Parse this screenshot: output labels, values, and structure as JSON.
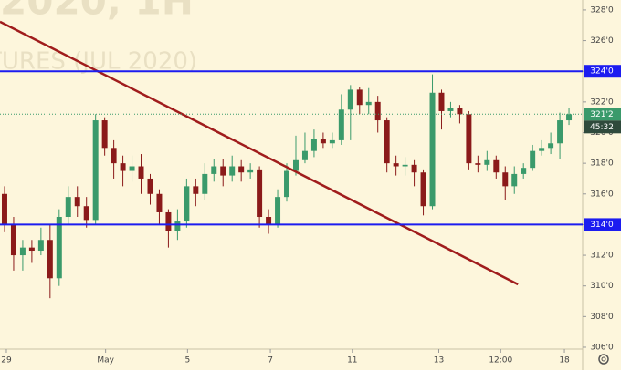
{
  "chart_data": {
    "type": "candlestick",
    "watermark": [
      "2020, 1H",
      "TURES (JUL 2020)"
    ],
    "xlim": [
      0,
      64
    ],
    "xticks": [
      {
        "value": 0.7,
        "label": "29"
      },
      {
        "value": 11.6,
        "label": "May"
      },
      {
        "value": 20.6,
        "label": "5"
      },
      {
        "value": 29.7,
        "label": "7"
      },
      {
        "value": 38.7,
        "label": "11"
      },
      {
        "value": 48.2,
        "label": "13"
      },
      {
        "value": 55,
        "label": "12:00"
      },
      {
        "value": 62,
        "label": "18"
      }
    ],
    "ylim": [
      305.88,
      328.65
    ],
    "yticks": [
      {
        "value": 306,
        "label": "306'0"
      },
      {
        "value": 308,
        "label": "308'0"
      },
      {
        "value": 310,
        "label": "310'0"
      },
      {
        "value": 312,
        "label": "312'0"
      },
      {
        "value": 314,
        "label": "314'0"
      },
      {
        "value": 316,
        "label": "316'0"
      },
      {
        "value": 318,
        "label": "318'0"
      },
      {
        "value": 320,
        "label": "320'0"
      },
      {
        "value": 322,
        "label": "322'0"
      },
      {
        "value": 324,
        "label": "324'0"
      },
      {
        "value": 326,
        "label": "326'0"
      },
      {
        "value": 328,
        "label": "328'0"
      }
    ],
    "up_color": "#3a9a6b",
    "down_color": "#8b1a1a",
    "x": [
      0,
      1,
      2,
      3,
      4,
      5,
      6,
      7,
      8,
      9,
      10,
      11,
      12,
      13,
      14,
      15,
      16,
      17,
      18,
      19,
      20,
      21,
      22,
      23,
      24,
      25,
      26,
      27,
      28,
      29,
      30,
      31,
      32,
      33,
      34,
      35,
      36,
      37,
      38,
      39,
      40,
      41,
      42,
      43,
      44,
      45,
      46,
      47,
      48,
      49,
      50,
      51,
      52,
      53,
      54,
      55,
      56,
      57,
      58,
      59,
      60,
      61,
      62
    ],
    "open": [
      316,
      314,
      312,
      312.5,
      312.3,
      313,
      310.5,
      314.5,
      315.8,
      315.2,
      314.3,
      320.8,
      319,
      318,
      317.5,
      317.8,
      317,
      316,
      314.8,
      313.6,
      314.2,
      316.5,
      316,
      317.3,
      317.8,
      317.2,
      317.8,
      317.4,
      317.6,
      314.5,
      314,
      315.8,
      317.5,
      318.2,
      318.8,
      319.6,
      319.3,
      319.5,
      321.5,
      322.8,
      321.8,
      322,
      320.8,
      318,
      317.8,
      317.9,
      317.4,
      315.2,
      322.6,
      321.4,
      321.6,
      321.2,
      318,
      317.9,
      318.2,
      317.4,
      316.5,
      317.3,
      317.7,
      318.8,
      319,
      319.3,
      320.8
    ],
    "high": [
      316.5,
      314.5,
      313,
      313,
      313.8,
      314,
      315,
      316.5,
      316.5,
      315.8,
      321.2,
      321,
      319.5,
      318.5,
      318.5,
      318.6,
      317.3,
      316.3,
      315,
      315,
      317,
      317,
      318,
      318.3,
      318.3,
      318.5,
      318.2,
      318,
      317.8,
      315,
      316.3,
      318,
      319.8,
      320,
      320.2,
      320,
      320,
      322.5,
      323.1,
      323,
      322.9,
      322.4,
      321,
      318.5,
      318.4,
      318.2,
      317.6,
      323.8,
      322.8,
      322,
      321.8,
      321.4,
      318.5,
      318.8,
      318.5,
      317.8,
      317.8,
      318,
      319.2,
      319.5,
      320,
      321.3,
      321.6
    ],
    "low": [
      313.5,
      311,
      311,
      311.5,
      312,
      309.2,
      310,
      314,
      314.5,
      313.8,
      314,
      318.5,
      317,
      316.5,
      316.8,
      316,
      315.3,
      314,
      312.5,
      313,
      313.8,
      315.2,
      315.6,
      316.8,
      316.5,
      316.8,
      316.8,
      317,
      313.8,
      313.4,
      313.8,
      315.5,
      317.2,
      318,
      318.4,
      319,
      319,
      319.2,
      319.5,
      321.2,
      321.2,
      320,
      317.4,
      317.2,
      317.2,
      316.5,
      314.6,
      315,
      320.2,
      321,
      320.6,
      317.6,
      317.4,
      317.5,
      317,
      315.6,
      316,
      317,
      317.5,
      318.5,
      318.6,
      318.3,
      320.5
    ],
    "close": [
      314,
      312,
      312.5,
      312.3,
      313,
      310.5,
      314.5,
      315.8,
      315.2,
      314.3,
      320.8,
      319,
      318,
      317.5,
      317.8,
      317,
      316,
      314.8,
      313.6,
      314.2,
      316.5,
      316,
      317.3,
      317.8,
      317.2,
      317.8,
      317.4,
      317.6,
      314.5,
      314,
      315.8,
      317.5,
      318.2,
      318.8,
      319.6,
      319.3,
      319.5,
      321.5,
      322.8,
      321.8,
      322,
      320.8,
      318,
      317.8,
      317.9,
      317.4,
      315.2,
      322.6,
      321.4,
      321.6,
      321.2,
      318,
      317.9,
      318.2,
      317.4,
      316.5,
      317.3,
      317.7,
      318.8,
      319,
      319.3,
      320.8,
      321.2
    ],
    "hlines": [
      {
        "value": 324,
        "label": "324'0",
        "color": "#1c1cf0"
      },
      {
        "value": 314,
        "label": "314'0",
        "color": "#1c1cf0"
      }
    ],
    "trendline": {
      "x": [
        0,
        56.9
      ],
      "y": [
        327.23,
        310.1
      ],
      "color": "#a01c1c"
    },
    "last_price": {
      "value": 321.2,
      "label": "321'2",
      "color": "#3a9a6b",
      "countdown": "45:32"
    }
  }
}
